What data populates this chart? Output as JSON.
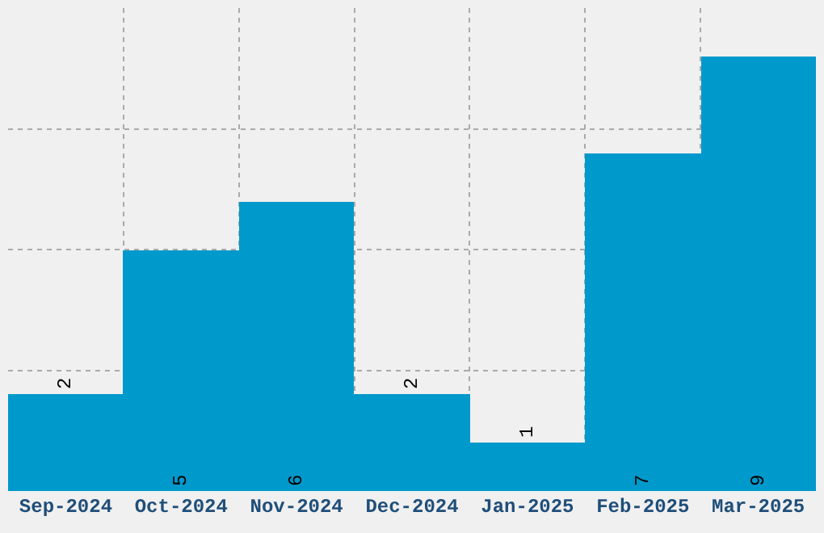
{
  "chart_data": {
    "type": "bar",
    "categories": [
      "Sep-2024",
      "Oct-2024",
      "Nov-2024",
      "Dec-2024",
      "Jan-2025",
      "Feb-2025",
      "Mar-2025"
    ],
    "values": [
      2,
      5,
      6,
      2,
      1,
      7,
      9
    ],
    "color": "#0099cc",
    "ylim": [
      0,
      10
    ],
    "yticks": [
      {
        "value": 2.5,
        "label": null
      },
      {
        "value": 5,
        "label": null
      },
      {
        "value": 7.5,
        "label": null
      }
    ],
    "tick_labels": "x",
    "grid": true,
    "data_labels": true,
    "legend": false
  }
}
